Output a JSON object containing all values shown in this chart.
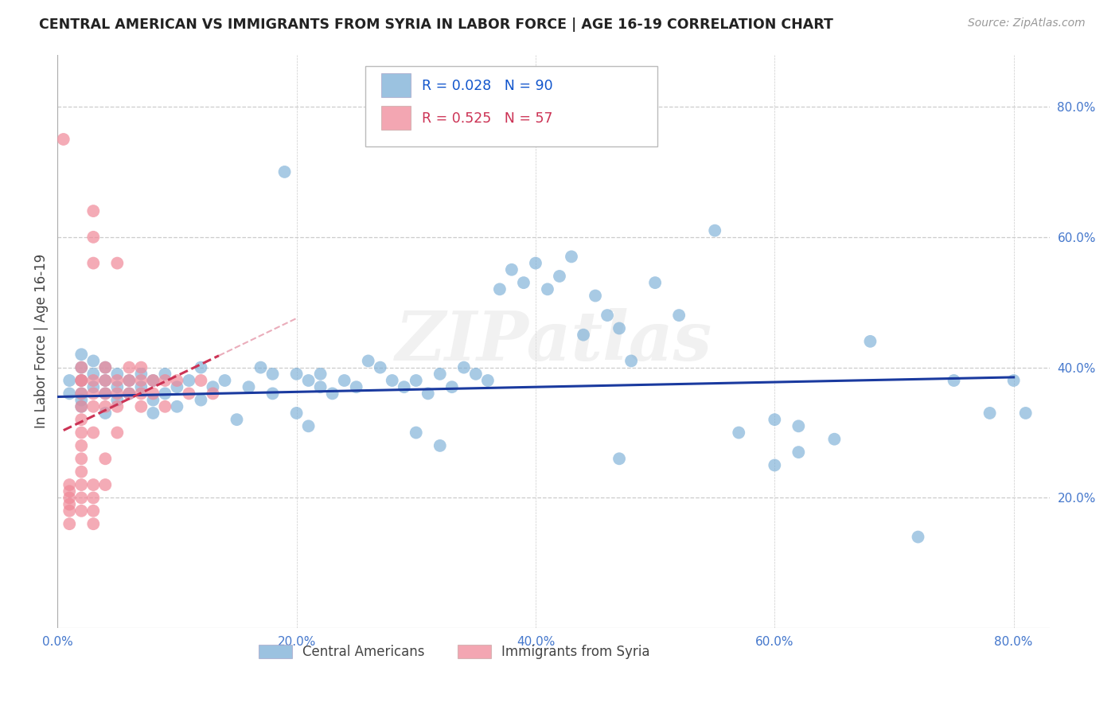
{
  "title": "CENTRAL AMERICAN VS IMMIGRANTS FROM SYRIA IN LABOR FORCE | AGE 16-19 CORRELATION CHART",
  "source_text": "Source: ZipAtlas.com",
  "ylabel": "In Labor Force | Age 16-19",
  "xlim": [
    0.0,
    0.83
  ],
  "ylim": [
    0.0,
    0.88
  ],
  "blue_R": 0.028,
  "blue_N": 90,
  "pink_R": 0.525,
  "pink_N": 57,
  "blue_color": "#7aaed6",
  "pink_color": "#f08898",
  "blue_line_color": "#1a3a9f",
  "pink_line_color": "#cc3355",
  "watermark": "ZIPatlas",
  "legend_label_blue": "Central Americans",
  "legend_label_pink": "Immigrants from Syria",
  "axis_tick_color": "#4477cc",
  "grid_color": "#cccccc",
  "title_color": "#222222",
  "source_color": "#999999",
  "blue_x": [
    0.01,
    0.01,
    0.02,
    0.02,
    0.02,
    0.02,
    0.02,
    0.02,
    0.03,
    0.03,
    0.03,
    0.04,
    0.04,
    0.04,
    0.04,
    0.05,
    0.05,
    0.05,
    0.06,
    0.06,
    0.07,
    0.07,
    0.08,
    0.08,
    0.08,
    0.09,
    0.09,
    0.1,
    0.1,
    0.11,
    0.12,
    0.12,
    0.13,
    0.14,
    0.15,
    0.16,
    0.17,
    0.18,
    0.18,
    0.19,
    0.2,
    0.21,
    0.22,
    0.22,
    0.23,
    0.24,
    0.25,
    0.26,
    0.27,
    0.28,
    0.29,
    0.3,
    0.31,
    0.32,
    0.33,
    0.34,
    0.35,
    0.36,
    0.37,
    0.38,
    0.39,
    0.4,
    0.41,
    0.42,
    0.43,
    0.44,
    0.45,
    0.46,
    0.47,
    0.48,
    0.5,
    0.52,
    0.55,
    0.57,
    0.6,
    0.62,
    0.65,
    0.68,
    0.72,
    0.75,
    0.78,
    0.8,
    0.81,
    0.3,
    0.32,
    0.2,
    0.21,
    0.47,
    0.6,
    0.62
  ],
  "blue_y": [
    0.38,
    0.36,
    0.38,
    0.4,
    0.36,
    0.34,
    0.42,
    0.35,
    0.39,
    0.37,
    0.41,
    0.38,
    0.36,
    0.4,
    0.33,
    0.37,
    0.39,
    0.35,
    0.38,
    0.36,
    0.39,
    0.37,
    0.38,
    0.35,
    0.33,
    0.36,
    0.39,
    0.37,
    0.34,
    0.38,
    0.35,
    0.4,
    0.37,
    0.38,
    0.32,
    0.37,
    0.4,
    0.39,
    0.36,
    0.7,
    0.39,
    0.38,
    0.37,
    0.39,
    0.36,
    0.38,
    0.37,
    0.41,
    0.4,
    0.38,
    0.37,
    0.38,
    0.36,
    0.39,
    0.37,
    0.4,
    0.39,
    0.38,
    0.52,
    0.55,
    0.53,
    0.56,
    0.52,
    0.54,
    0.57,
    0.45,
    0.51,
    0.48,
    0.46,
    0.41,
    0.53,
    0.48,
    0.61,
    0.3,
    0.32,
    0.27,
    0.29,
    0.44,
    0.14,
    0.38,
    0.33,
    0.38,
    0.33,
    0.3,
    0.28,
    0.33,
    0.31,
    0.26,
    0.25,
    0.31
  ],
  "pink_x": [
    0.005,
    0.01,
    0.01,
    0.01,
    0.01,
    0.01,
    0.01,
    0.02,
    0.02,
    0.02,
    0.02,
    0.02,
    0.02,
    0.02,
    0.02,
    0.02,
    0.02,
    0.02,
    0.02,
    0.02,
    0.03,
    0.03,
    0.03,
    0.03,
    0.03,
    0.03,
    0.03,
    0.03,
    0.03,
    0.03,
    0.03,
    0.04,
    0.04,
    0.04,
    0.04,
    0.04,
    0.04,
    0.05,
    0.05,
    0.05,
    0.05,
    0.05,
    0.06,
    0.06,
    0.06,
    0.07,
    0.07,
    0.07,
    0.07,
    0.08,
    0.08,
    0.09,
    0.09,
    0.1,
    0.11,
    0.12,
    0.13
  ],
  "pink_y": [
    0.75,
    0.2,
    0.18,
    0.22,
    0.16,
    0.21,
    0.19,
    0.38,
    0.36,
    0.32,
    0.28,
    0.26,
    0.34,
    0.3,
    0.22,
    0.18,
    0.24,
    0.2,
    0.38,
    0.4,
    0.6,
    0.64,
    0.56,
    0.36,
    0.38,
    0.34,
    0.3,
    0.22,
    0.18,
    0.2,
    0.16,
    0.36,
    0.38,
    0.4,
    0.34,
    0.26,
    0.22,
    0.56,
    0.36,
    0.38,
    0.34,
    0.3,
    0.36,
    0.4,
    0.38,
    0.38,
    0.34,
    0.36,
    0.4,
    0.38,
    0.36,
    0.34,
    0.38,
    0.38,
    0.36,
    0.38,
    0.36
  ],
  "pink_line_x0": 0.005,
  "pink_line_x1": 0.135
}
